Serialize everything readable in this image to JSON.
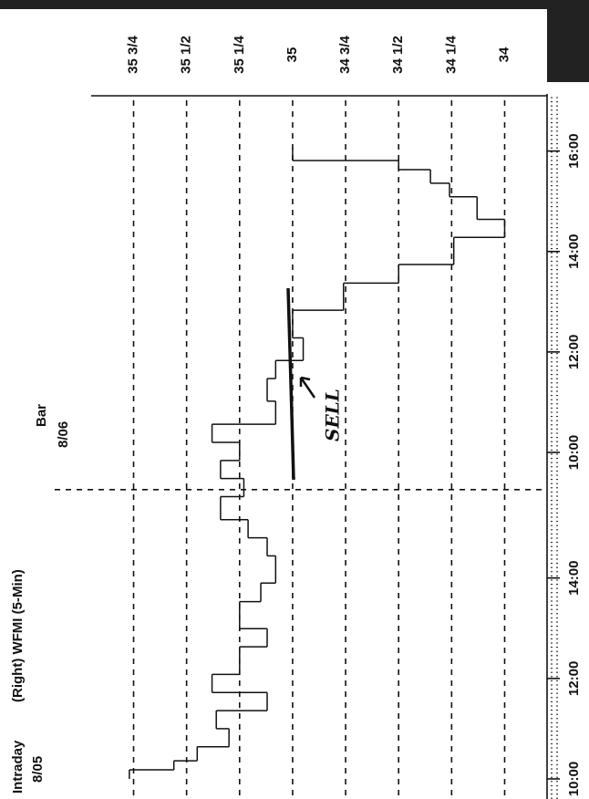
{
  "chart_data": {
    "type": "line",
    "title": "(Right) WFMI (5-Min)",
    "labels": {
      "mode": "Intraday",
      "date1": "8/05",
      "style": "Bar",
      "date2": "8/06"
    },
    "annotation": "SELL",
    "color": "#111111",
    "x": [
      0.5,
      0.68,
      0.86,
      1.14,
      1.5,
      1.86,
      2.22,
      2.58,
      3.13,
      3.49,
      4.03,
      4.4,
      4.94,
      5.3,
      5.66,
      6.12,
      6.48,
      6.84,
      7.2,
      7.56,
      8.02,
      8.47,
      8.83,
      9.28,
      9.83,
      10.37,
      10.74,
      11.28,
      11.64,
      12.09,
      12.36,
      12.63,
      12.81
    ],
    "values": [
      35.77,
      35.56,
      35.45,
      35.3,
      35.36,
      35.12,
      35.38,
      35.25,
      35.12,
      35.25,
      35.15,
      35.08,
      35.12,
      35.21,
      35.34,
      35.23,
      35.34,
      35.25,
      35.38,
      35.08,
      35.12,
      35.08,
      34.95,
      35.0,
      34.76,
      34.5,
      34.24,
      34.0,
      34.13,
      34.26,
      34.35,
      34.5,
      35.0
    ],
    "xlim": [
      0.1,
      14.1
    ],
    "xticks": [
      {
        "value": 0.5,
        "label": "10:00"
      },
      {
        "value": 2.5,
        "label": "12:00"
      },
      {
        "value": 4.5,
        "label": "14:00"
      },
      {
        "value": 7.0,
        "label": "10:00"
      },
      {
        "value": 9.0,
        "label": "12:00"
      },
      {
        "value": 11.0,
        "label": "14:00"
      },
      {
        "value": 13.0,
        "label": "16:00"
      }
    ],
    "ylim": [
      33.8,
      35.95
    ],
    "yticks": [
      {
        "value": 35.75,
        "label": "35 3/4"
      },
      {
        "value": 35.5,
        "label": "35 1/2"
      },
      {
        "value": 35.25,
        "label": "35 1/4"
      },
      35,
      {
        "value": 34.75,
        "label": "34 3/4"
      },
      {
        "value": 34.5,
        "label": "34 1/2"
      },
      {
        "value": 34.25,
        "label": "34 1/4"
      },
      34
    ],
    "grid": true
  }
}
